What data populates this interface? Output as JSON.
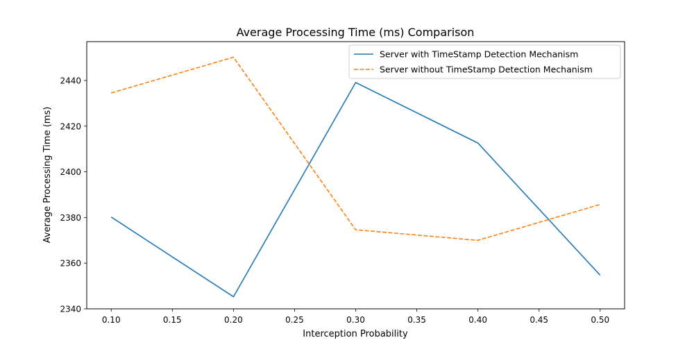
{
  "chart_data": {
    "type": "line",
    "title": "Average Processing Time (ms) Comparison",
    "xlabel": "Interception Probability",
    "ylabel": "Average Processing Time (ms)",
    "xlim": [
      0.08,
      0.52
    ],
    "ylim": [
      2340,
      2457
    ],
    "xticks": [
      "0.10",
      "0.15",
      "0.20",
      "0.25",
      "0.30",
      "0.35",
      "0.40",
      "0.45",
      "0.50"
    ],
    "yticks": [
      "2340",
      "2360",
      "2380",
      "2400",
      "2420",
      "2440"
    ],
    "grid": false,
    "legend_position": "top-right",
    "x": [
      0.1,
      0.2,
      0.3,
      0.4,
      0.5
    ],
    "series": [
      {
        "name": "Server with TimeStamp Detection Mechanism",
        "values": [
          2380.2,
          2345.3,
          2439.1,
          2412.6,
          2354.7
        ],
        "color": "#1f77b4",
        "style": "solid"
      },
      {
        "name": "Server without TimeStamp Detection Mechanism",
        "values": [
          2434.5,
          2450.2,
          2374.6,
          2370.0,
          2385.7
        ],
        "color": "#ff7f0e",
        "style": "dashed"
      }
    ]
  }
}
